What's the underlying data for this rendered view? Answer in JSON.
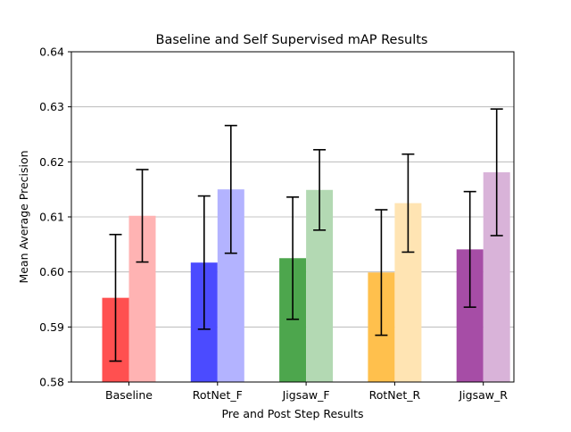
{
  "chart_data": {
    "type": "bar",
    "title": "Baseline and Self Supervised mAP Results",
    "xlabel": "Pre and Post Step Results",
    "ylabel": "Mean Average Precision",
    "ylim": [
      0.58,
      0.64
    ],
    "yticks": [
      "0.58",
      "0.59",
      "0.60",
      "0.61",
      "0.62",
      "0.63",
      "0.64"
    ],
    "grid": "horizontal",
    "categories": [
      "Baseline",
      "RotNet_F",
      "Jigsaw_F",
      "RotNet_R",
      "Jigsaw_R"
    ],
    "series": [
      {
        "values": [
          0.5953,
          0.6017,
          0.6025,
          0.5999,
          0.6041
        ],
        "errors": [
          0.0115,
          0.0121,
          0.0111,
          0.0114,
          0.0105
        ],
        "colors": [
          "#ff5050",
          "#4b4bff",
          "#4da64d",
          "#ffc04d",
          "#a64da6"
        ]
      },
      {
        "values": [
          0.6102,
          0.615,
          0.6149,
          0.6125,
          0.6181
        ],
        "errors": [
          0.0084,
          0.0116,
          0.0073,
          0.0089,
          0.0115
        ],
        "colors": [
          "#ffb3b3",
          "#b3b3ff",
          "#b3d9b3",
          "#ffe4b3",
          "#d9b3d9"
        ]
      }
    ]
  }
}
